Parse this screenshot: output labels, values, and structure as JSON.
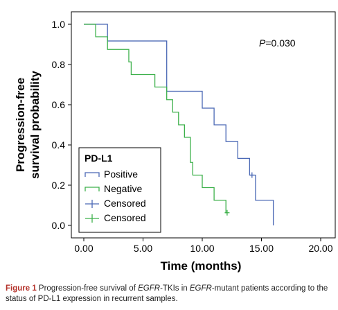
{
  "chart_data": {
    "type": "line",
    "subtype": "kaplan-meier step",
    "xlabel": "Time (months)",
    "ylabel_lines": [
      "Progression-free",
      "survival probability"
    ],
    "xlim": [
      0,
      20
    ],
    "ylim": [
      0,
      1
    ],
    "x_ticks": [
      "0.00",
      "5.00",
      "10.00",
      "15.00",
      "20.00"
    ],
    "y_ticks": [
      "0.0",
      "0.2",
      "0.4",
      "0.6",
      "0.8",
      "1.0"
    ],
    "x_tick_values": [
      0,
      5,
      10,
      15,
      20
    ],
    "y_tick_values": [
      0,
      0.2,
      0.4,
      0.6,
      0.8,
      1.0
    ],
    "annotation": {
      "p_label": "P",
      "p_value": "=0.030"
    },
    "legend": {
      "title": "PD-L1",
      "placement": "bottom-left",
      "entries": [
        {
          "label": "Positive",
          "color": "#4a68b5",
          "symbol": "step"
        },
        {
          "label": "Negative",
          "color": "#3cb04a",
          "symbol": "step"
        },
        {
          "label": "Censored",
          "color": "#4a68b5",
          "symbol": "plus"
        },
        {
          "label": "Censored",
          "color": "#3cb04a",
          "symbol": "plus"
        }
      ]
    },
    "series": [
      {
        "name": "Positive",
        "color": "#4a68b5",
        "steps": [
          [
            0,
            1.0
          ],
          [
            2,
            0.917
          ],
          [
            7,
            0.667
          ],
          [
            10,
            0.583
          ],
          [
            11,
            0.5
          ],
          [
            12,
            0.417
          ],
          [
            13,
            0.333
          ],
          [
            14,
            0.25
          ],
          [
            14.5,
            0.125
          ],
          [
            16,
            0.0
          ]
        ],
        "end_x": 16,
        "censored": [
          [
            14.2,
            0.25
          ]
        ]
      },
      {
        "name": "Negative",
        "color": "#3cb04a",
        "steps": [
          [
            0,
            1.0
          ],
          [
            1,
            0.938
          ],
          [
            2,
            0.875
          ],
          [
            3.8,
            0.813
          ],
          [
            4,
            0.75
          ],
          [
            6,
            0.688
          ],
          [
            7,
            0.625
          ],
          [
            7.5,
            0.563
          ],
          [
            8,
            0.5
          ],
          [
            8.5,
            0.438
          ],
          [
            9,
            0.313
          ],
          [
            9.2,
            0.25
          ],
          [
            10,
            0.188
          ],
          [
            11,
            0.125
          ],
          [
            12,
            0.063
          ]
        ],
        "end_x": 12.1,
        "censored": [
          [
            12.1,
            0.063
          ]
        ]
      }
    ]
  },
  "caption": {
    "lead": "Figure 1",
    "parts": [
      {
        "t": " Progression-free survival of ",
        "i": false
      },
      {
        "t": "EGFR",
        "i": true
      },
      {
        "t": "-TKIs in ",
        "i": false
      },
      {
        "t": "EGFR",
        "i": true
      },
      {
        "t": "-mutant patients according to the status of PD-L1 expression in recurrent samples.",
        "i": false
      }
    ]
  }
}
